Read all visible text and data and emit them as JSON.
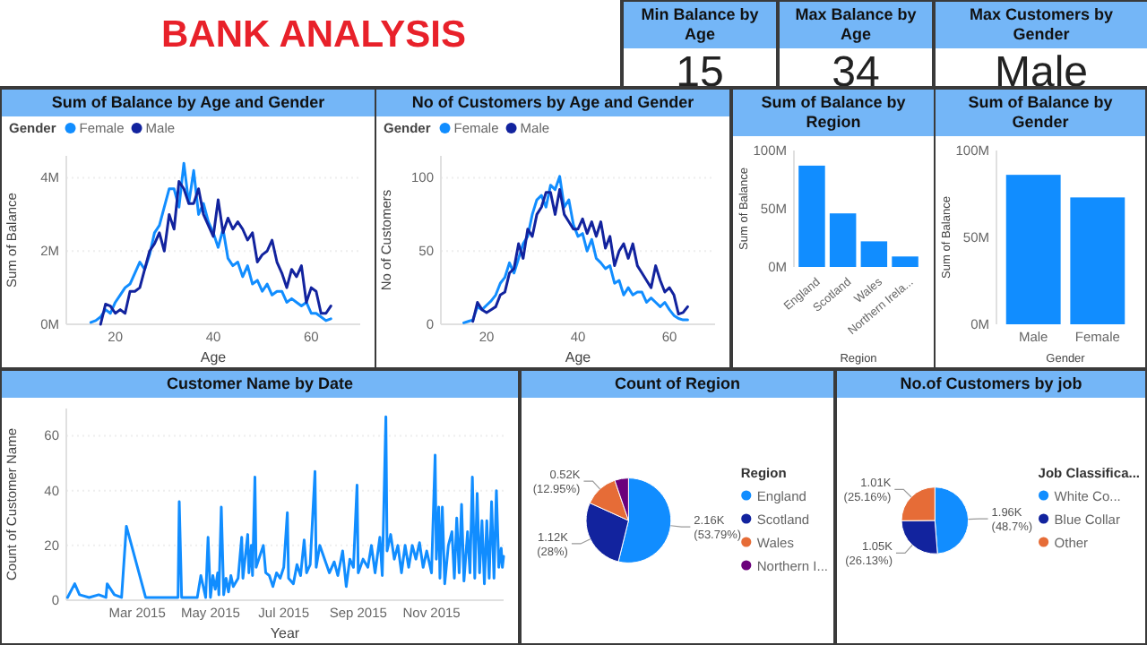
{
  "chart_data": [
    {
      "type": "other",
      "title": "BANK ANALYSIS"
    },
    {
      "type": "other",
      "title": "Min Balance by Age",
      "annotations": [
        "15"
      ]
    },
    {
      "type": "other",
      "title": "Max Balance by Age",
      "annotations": [
        "34"
      ]
    },
    {
      "type": "other",
      "title": "Max Customers by Gender",
      "annotations": [
        "Male"
      ]
    },
    {
      "type": "line",
      "title": "Sum of Balance by Age and Gender",
      "xlabel": "Age",
      "ylabel": "Sum of Balance",
      "legend": "top left",
      "legend_title": "Gender",
      "grid": "y",
      "x": [
        15,
        16,
        17,
        18,
        19,
        20,
        21,
        22,
        23,
        24,
        25,
        26,
        27,
        28,
        29,
        30,
        31,
        32,
        33,
        34,
        35,
        36,
        37,
        38,
        39,
        40,
        41,
        42,
        43,
        44,
        45,
        46,
        47,
        48,
        49,
        50,
        51,
        52,
        53,
        54,
        55,
        56,
        57,
        58,
        59,
        60,
        61,
        62,
        63,
        64
      ],
      "xlim": [
        10,
        70
      ],
      "xticks": [
        20,
        40,
        60
      ],
      "ylim": [
        0,
        4600000
      ],
      "yticks": [
        {
          "value": 0,
          "label": "0M"
        },
        {
          "value": 2000000,
          "label": "2M"
        },
        {
          "value": 4000000,
          "label": "4M"
        }
      ],
      "series": [
        {
          "name": "Female",
          "color": "#118dff",
          "values": [
            50000,
            100000,
            200000,
            400000,
            300000,
            600000,
            800000,
            1000000,
            1100000,
            1400000,
            1700000,
            1500000,
            1900000,
            2500000,
            2700000,
            3200000,
            3700000,
            3700000,
            3200000,
            4400000,
            3300000,
            4200000,
            3000000,
            3300000,
            2800000,
            2500000,
            2100000,
            2600000,
            1800000,
            1600000,
            1700000,
            1300000,
            1600000,
            1100000,
            1200000,
            900000,
            1100000,
            800000,
            900000,
            900000,
            600000,
            700000,
            600000,
            500000,
            600000,
            300000,
            300000,
            200000,
            100000,
            150000
          ]
        },
        {
          "name": "Male",
          "color": "#12239e",
          "values": [
            null,
            null,
            0,
            550000,
            500000,
            300000,
            400000,
            300000,
            900000,
            900000,
            1000000,
            1500000,
            2000000,
            2200000,
            2500000,
            2000000,
            3000000,
            2600000,
            3900000,
            3700000,
            3300000,
            3300000,
            3700000,
            3000000,
            2700000,
            2400000,
            3400000,
            2500000,
            2900000,
            2600000,
            2800000,
            2600000,
            2300000,
            2500000,
            1700000,
            1900000,
            2000000,
            2300000,
            1700000,
            1400000,
            1000000,
            1500000,
            1300000,
            1600000,
            600000,
            1000000,
            900000,
            300000,
            300000,
            500000
          ]
        }
      ]
    },
    {
      "type": "line",
      "title": "No of Customers by Age and Gender",
      "xlabel": "Age",
      "ylabel": "No of Customers",
      "legend": "top left",
      "legend_title": "Gender",
      "grid": "y",
      "x": [
        15,
        16,
        17,
        18,
        19,
        20,
        21,
        22,
        23,
        24,
        25,
        26,
        27,
        28,
        29,
        30,
        31,
        32,
        33,
        34,
        35,
        36,
        37,
        38,
        39,
        40,
        41,
        42,
        43,
        44,
        45,
        46,
        47,
        48,
        49,
        50,
        51,
        52,
        53,
        54,
        55,
        56,
        57,
        58,
        59,
        60,
        61,
        62,
        63,
        64
      ],
      "xlim": [
        10,
        70
      ],
      "xticks": [
        20,
        40,
        60
      ],
      "ylim": [
        0,
        115
      ],
      "yticks": [
        0,
        50,
        100
      ],
      "series": [
        {
          "name": "Female",
          "color": "#118dff",
          "values": [
            1,
            2,
            3,
            12,
            10,
            13,
            16,
            20,
            28,
            32,
            42,
            35,
            45,
            55,
            60,
            75,
            85,
            88,
            80,
            95,
            92,
            101,
            80,
            85,
            68,
            60,
            62,
            50,
            58,
            45,
            42,
            38,
            40,
            28,
            30,
            20,
            25,
            20,
            22,
            22,
            15,
            18,
            15,
            12,
            15,
            10,
            6,
            4,
            3,
            3
          ]
        },
        {
          "name": "Male",
          "color": "#12239e",
          "values": [
            null,
            null,
            2,
            15,
            10,
            8,
            10,
            12,
            20,
            22,
            35,
            38,
            55,
            45,
            65,
            60,
            75,
            80,
            90,
            90,
            75,
            92,
            75,
            70,
            65,
            65,
            72,
            62,
            70,
            60,
            70,
            52,
            60,
            40,
            50,
            55,
            45,
            55,
            40,
            35,
            30,
            25,
            40,
            30,
            22,
            25,
            20,
            7,
            8,
            12
          ]
        }
      ]
    },
    {
      "type": "bar",
      "title": "Sum of Balance by Region",
      "xlabel": "Region",
      "ylabel": "Sum of Balance",
      "categories": [
        "England",
        "Scotland",
        "Wales",
        "Northern Irela..."
      ],
      "values": [
        87000000,
        46000000,
        22000000,
        9000000
      ],
      "color": "#118dff",
      "ylim": [
        0,
        100000000
      ],
      "yticks": [
        {
          "value": 0,
          "label": "0M"
        },
        {
          "value": 50000000,
          "label": "50M"
        },
        {
          "value": 100000000,
          "label": "100M"
        }
      ]
    },
    {
      "type": "bar",
      "title": "Sum of Balance by Gender",
      "xlabel": "Gender",
      "ylabel": "Sum of Balance",
      "categories": [
        "Male",
        "Female"
      ],
      "values": [
        86000000,
        73000000
      ],
      "color": "#118dff",
      "ylim": [
        0,
        100000000
      ],
      "yticks": [
        {
          "value": 0,
          "label": "0M"
        },
        {
          "value": 50000000,
          "label": "50M"
        },
        {
          "value": 100000000,
          "label": "100M"
        }
      ]
    },
    {
      "type": "line",
      "title": "Customer Name by Date",
      "xlabel": "Year",
      "ylabel": "Count of Customer Name",
      "grid": "y",
      "x": [
        "2015-01-02",
        "2015-01-08",
        "2015-01-12",
        "2015-01-20",
        "2015-01-28",
        "2015-02-03",
        "2015-02-04",
        "2015-02-10",
        "2015-02-16",
        "2015-02-20",
        "2015-03-08",
        "2015-04-04",
        "2015-04-05",
        "2015-04-07",
        "2015-04-20",
        "2015-04-23",
        "2015-04-27",
        "2015-04-29",
        "2015-05-01",
        "2015-05-03",
        "2015-05-05",
        "2015-05-07",
        "2015-05-08",
        "2015-05-10",
        "2015-05-12",
        "2015-05-14",
        "2015-05-16",
        "2015-05-18",
        "2015-05-20",
        "2015-05-24",
        "2015-05-27",
        "2015-05-28",
        "2015-06-01",
        "2015-06-02",
        "2015-06-04",
        "2015-06-05",
        "2015-06-07",
        "2015-06-08",
        "2015-06-11",
        "2015-06-14",
        "2015-06-16",
        "2015-06-19",
        "2015-06-22",
        "2015-06-25",
        "2015-06-28",
        "2015-07-01",
        "2015-07-04",
        "2015-07-05",
        "2015-07-09",
        "2015-07-12",
        "2015-07-15",
        "2015-07-18",
        "2015-07-20",
        "2015-07-23",
        "2015-07-27",
        "2015-07-28",
        "2015-07-31",
        "2015-08-04",
        "2015-08-08",
        "2015-08-12",
        "2015-08-15",
        "2015-08-19",
        "2015-08-22",
        "2015-08-25",
        "2015-08-28",
        "2015-08-31",
        "2015-09-01",
        "2015-09-05",
        "2015-09-09",
        "2015-09-12",
        "2015-09-15",
        "2015-09-19",
        "2015-09-21",
        "2015-09-24",
        "2015-09-25",
        "2015-09-28",
        "2015-10-01",
        "2015-10-04",
        "2015-10-07",
        "2015-10-10",
        "2015-10-13",
        "2015-10-16",
        "2015-10-19",
        "2015-10-22",
        "2015-10-25",
        "2015-10-28",
        "2015-11-01",
        "2015-11-04",
        "2015-11-05",
        "2015-11-07",
        "2015-11-08",
        "2015-11-10",
        "2015-11-12",
        "2015-11-15",
        "2015-11-18",
        "2015-11-20",
        "2015-11-22",
        "2015-11-24",
        "2015-11-26",
        "2015-11-28",
        "2015-12-01",
        "2015-12-03",
        "2015-12-05",
        "2015-12-07",
        "2015-12-09",
        "2015-12-11",
        "2015-12-13",
        "2015-12-15",
        "2015-12-17",
        "2015-12-19",
        "2015-12-21",
        "2015-12-23",
        "2015-12-25",
        "2015-12-27",
        "2015-12-29",
        "2015-12-30",
        "2015-12-31"
      ],
      "xlim": [
        "2015-01-01",
        "2015-12-31"
      ],
      "xticks": [
        {
          "value": "2015-03-01",
          "label": "Mar 2015"
        },
        {
          "value": "2015-05-01",
          "label": "May 2015"
        },
        {
          "value": "2015-07-01",
          "label": "Jul 2015"
        },
        {
          "value": "2015-09-01",
          "label": "Sep 2015"
        },
        {
          "value": "2015-11-01",
          "label": "Nov 2015"
        }
      ],
      "ylim": [
        0,
        70
      ],
      "yticks": [
        0,
        20,
        40,
        60
      ],
      "series": [
        {
          "color": "#118dff",
          "values": [
            1,
            6,
            2,
            1,
            2,
            1,
            6,
            2,
            1,
            27,
            1,
            1,
            36,
            1,
            1,
            9,
            1,
            23,
            1,
            9,
            4,
            10,
            2,
            34,
            2,
            8,
            3,
            9,
            5,
            8,
            23,
            8,
            24,
            10,
            20,
            9,
            45,
            12,
            16,
            20,
            10,
            9,
            5,
            10,
            8,
            12,
            32,
            8,
            6,
            13,
            9,
            22,
            10,
            13,
            47,
            12,
            20,
            15,
            10,
            14,
            9,
            18,
            5,
            15,
            12,
            42,
            10,
            15,
            12,
            20,
            10,
            23,
            9,
            67,
            18,
            24,
            15,
            20,
            10,
            20,
            12,
            20,
            15,
            21,
            12,
            18,
            10,
            53,
            15,
            34,
            8,
            34,
            6,
            20,
            25,
            8,
            30,
            10,
            35,
            7,
            25,
            10,
            45,
            8,
            39,
            10,
            29,
            6,
            29,
            8,
            36,
            8,
            40,
            12,
            19,
            12,
            16
          ]
        }
      ]
    },
    {
      "type": "pie",
      "title": "Count of Region",
      "legend": "right",
      "legend_title": "Region",
      "categories": [
        "England",
        "Scotland",
        "Wales",
        "Northern I..."
      ],
      "values": [
        2160,
        1120,
        520,
        211
      ],
      "colors": [
        "#118dff",
        "#12239e",
        "#e66c37",
        "#6b007b"
      ],
      "value_labels": [
        "2.16K (53.79%)",
        "1.12K (28%)",
        "0.52K (12.95%)",
        null
      ]
    },
    {
      "type": "pie",
      "title": "No.of Customers by job",
      "legend": "right",
      "legend_title": "Job Classifica...",
      "categories": [
        "White Co...",
        "Blue Collar",
        "Other"
      ],
      "values": [
        1960,
        1050,
        1010
      ],
      "colors": [
        "#118dff",
        "#12239e",
        "#e66c37"
      ],
      "value_labels": [
        "1.96K (48.7%)",
        "1.05K (26.13%)",
        "1.01K (25.16%)"
      ]
    }
  ]
}
